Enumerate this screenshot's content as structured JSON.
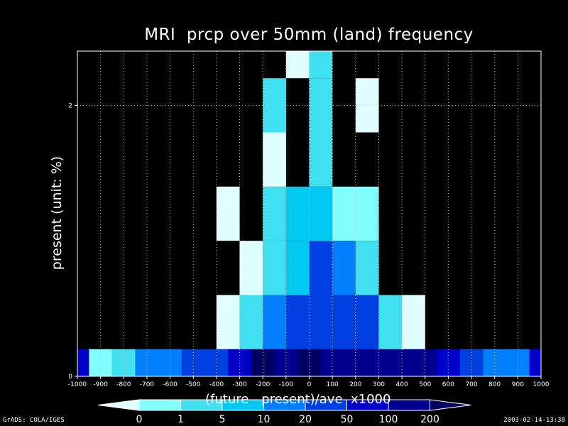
{
  "chart_data": {
    "type": "heatmap",
    "title": "MRI  prcp over 50mm (land) frequency",
    "xlabel": "(future - present)/ave  x1000",
    "ylabel": "present (unit: %)",
    "xlim": [
      -1000,
      1000
    ],
    "ylim": [
      0,
      2.4
    ],
    "x_ticks": [
      "-1000",
      "-900",
      "-800",
      "-700",
      "-600",
      "-500",
      "-400",
      "-300",
      "-200",
      "-100",
      "0",
      "100",
      "200",
      "300",
      "400",
      "500",
      "600",
      "700",
      "800",
      "900",
      "1000"
    ],
    "y_ticks": [
      "0",
      "2"
    ],
    "grid": true,
    "colorbar": {
      "levels": [
        "0",
        "1",
        "5",
        "10",
        "20",
        "50",
        "100",
        "200"
      ],
      "colors": [
        "#e0ffff",
        "#80ffff",
        "#40e0f0",
        "#00c8f0",
        "#0080ff",
        "#0040e0",
        "#0000c8",
        "#000090",
        "#000060"
      ]
    },
    "y_bands": [
      {
        "y": [
          0,
          0.2
        ],
        "cells": [
          {
            "x": [
              -1000,
              -950
            ],
            "level": 6
          },
          {
            "x": [
              -950,
              -850
            ],
            "level": 1
          },
          {
            "x": [
              -850,
              -750
            ],
            "level": 2
          },
          {
            "x": [
              -750,
              -550
            ],
            "level": 4
          },
          {
            "x": [
              -550,
              -350
            ],
            "level": 5
          },
          {
            "x": [
              -350,
              -250
            ],
            "level": 6
          },
          {
            "x": [
              -250,
              -150
            ],
            "level": 8
          },
          {
            "x": [
              -150,
              -50
            ],
            "level": 7
          },
          {
            "x": [
              -50,
              50
            ],
            "level": 8
          },
          {
            "x": [
              50,
              150
            ],
            "level": 7
          },
          {
            "x": [
              150,
              250
            ],
            "level": 7
          },
          {
            "x": [
              250,
              350
            ],
            "level": 7
          },
          {
            "x": [
              350,
              450
            ],
            "level": 7
          },
          {
            "x": [
              450,
              550
            ],
            "level": 7
          },
          {
            "x": [
              550,
              650
            ],
            "level": 6
          },
          {
            "x": [
              650,
              750
            ],
            "level": 5
          },
          {
            "x": [
              750,
              950
            ],
            "level": 4
          },
          {
            "x": [
              950,
              1000
            ],
            "level": 6
          }
        ]
      },
      {
        "y": [
          0.2,
          0.6
        ],
        "cells": [
          {
            "x": [
              -400,
              -300
            ],
            "level": 0
          },
          {
            "x": [
              -300,
              -200
            ],
            "level": 2
          },
          {
            "x": [
              -200,
              -100
            ],
            "level": 4
          },
          {
            "x": [
              -100,
              300
            ],
            "level": 5
          },
          {
            "x": [
              300,
              400
            ],
            "level": 2
          },
          {
            "x": [
              400,
              500
            ],
            "level": 0
          }
        ]
      },
      {
        "y": [
          0.6,
          1.0
        ],
        "cells": [
          {
            "x": [
              -300,
              -200
            ],
            "level": 0
          },
          {
            "x": [
              -200,
              -100
            ],
            "level": 2
          },
          {
            "x": [
              -100,
              0
            ],
            "level": 3
          },
          {
            "x": [
              0,
              100
            ],
            "level": 5
          },
          {
            "x": [
              100,
              200
            ],
            "level": 4
          },
          {
            "x": [
              200,
              300
            ],
            "level": 2
          }
        ]
      },
      {
        "y": [
          1.0,
          1.4
        ],
        "cells": [
          {
            "x": [
              -400,
              -300
            ],
            "level": 0
          },
          {
            "x": [
              -200,
              -100
            ],
            "level": 2
          },
          {
            "x": [
              -100,
              100
            ],
            "level": 3
          },
          {
            "x": [
              100,
              300
            ],
            "level": 1
          }
        ]
      },
      {
        "y": [
          1.4,
          1.8
        ],
        "cells": [
          {
            "x": [
              -200,
              -100
            ],
            "level": 0
          },
          {
            "x": [
              0,
              100
            ],
            "level": 2
          }
        ]
      },
      {
        "y": [
          1.8,
          2.2
        ],
        "cells": [
          {
            "x": [
              -200,
              -100
            ],
            "level": 2
          },
          {
            "x": [
              0,
              100
            ],
            "level": 2
          },
          {
            "x": [
              200,
              300
            ],
            "level": 0
          }
        ]
      },
      {
        "y": [
          2.2,
          2.4
        ],
        "cells": [
          {
            "x": [
              -100,
              0
            ],
            "level": 0
          },
          {
            "x": [
              0,
              100
            ],
            "level": 2
          }
        ]
      }
    ]
  },
  "footer": {
    "left": "GrADS: COLA/IGES",
    "right": "2003-02-14-13:38"
  }
}
